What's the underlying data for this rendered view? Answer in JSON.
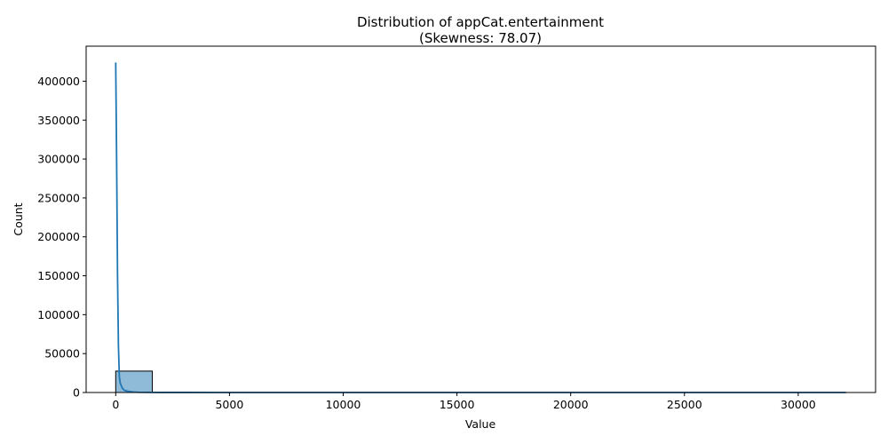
{
  "chart_data": {
    "type": "bar",
    "title": "Distribution of appCat.entertainment",
    "subtitle": "(Skewness: 78.07)",
    "xlabel": "Value",
    "ylabel": "Count",
    "xlim": [
      -1300,
      33400
    ],
    "ylim": [
      0,
      445000
    ],
    "xticks": [
      0,
      5000,
      10000,
      15000,
      20000,
      25000,
      30000
    ],
    "yticks": [
      0,
      50000,
      100000,
      150000,
      200000,
      250000,
      300000,
      350000,
      400000
    ],
    "bins": [
      {
        "x0": 0,
        "x1": 1610,
        "count": 27500
      }
    ],
    "kde": {
      "x": [
        0,
        40,
        80,
        120,
        160,
        200,
        300,
        400,
        600,
        800,
        1000,
        1500,
        2000,
        3000,
        5000,
        10000,
        20000,
        32100
      ],
      "y": [
        424000,
        300000,
        150000,
        60000,
        20000,
        12000,
        5000,
        2500,
        1200,
        600,
        300,
        150,
        80,
        40,
        10,
        5,
        2,
        0
      ]
    },
    "grid": false,
    "colors": {
      "bar_fill": "#1f77b4",
      "bar_fill_opacity": 0.5,
      "bar_edge": "#000000",
      "kde_line": "#1f77b4"
    }
  }
}
